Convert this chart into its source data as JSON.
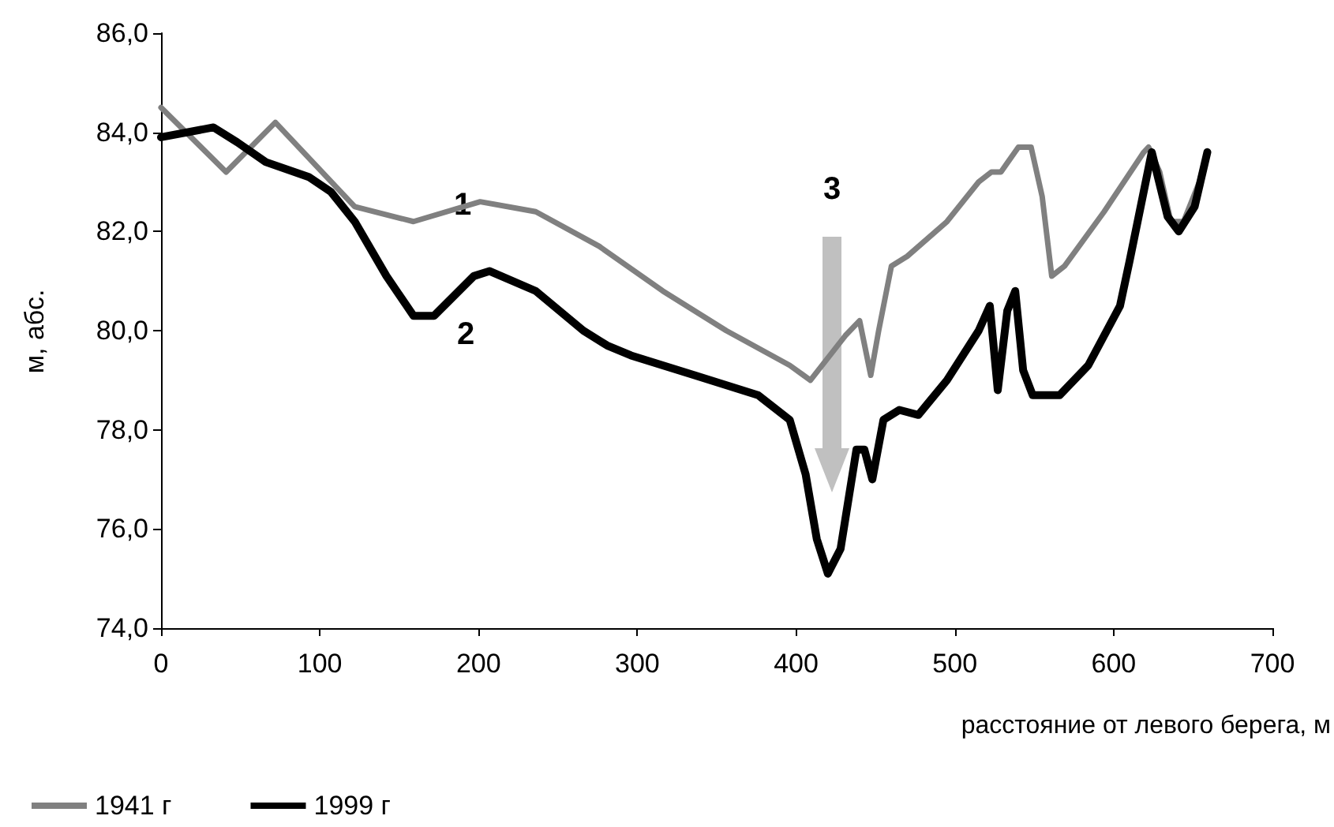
{
  "chart_data": {
    "type": "line",
    "xlabel": "расстояние от левого берега, м",
    "ylabel": "м, абс.",
    "xlim": [
      0,
      700
    ],
    "xticks": [
      0,
      100,
      200,
      300,
      400,
      500,
      600,
      700
    ],
    "ylim": [
      74,
      86
    ],
    "yticks": [
      {
        "value": 74,
        "label": "74,0"
      },
      {
        "value": 76,
        "label": "76,0"
      },
      {
        "value": 78,
        "label": "78,0"
      },
      {
        "value": 80,
        "label": "80,0"
      },
      {
        "value": 82,
        "label": "82,0"
      },
      {
        "value": 84,
        "label": "84,0"
      },
      {
        "value": 86,
        "label": "86,0"
      }
    ],
    "grid": false,
    "legend": "bottom left",
    "marker": "none",
    "line_style": "solid",
    "annotations": [
      "1",
      "2",
      "3"
    ],
    "series": [
      {
        "name": "1941 г",
        "color": "#808080",
        "x": [
          0,
          41,
          72,
          122,
          159,
          201,
          236,
          276,
          316,
          356,
          396,
          409,
          431,
          440,
          447,
          452,
          460,
          470,
          495,
          515,
          523,
          529,
          540,
          548,
          555,
          561,
          569,
          594,
          619,
          622,
          629,
          636,
          644,
          654,
          658
        ],
        "values": [
          84.5,
          83.2,
          84.2,
          82.5,
          82.2,
          82.6,
          82.4,
          81.7,
          80.8,
          80.0,
          79.3,
          79.0,
          79.9,
          80.2,
          79.1,
          80.0,
          81.3,
          81.5,
          82.2,
          83.0,
          83.2,
          83.2,
          83.7,
          83.7,
          82.7,
          81.1,
          81.3,
          82.4,
          83.6,
          83.7,
          83.2,
          82.2,
          82.2,
          83.0,
          83.5
        ]
      },
      {
        "name": "1999 г",
        "color": "#000000",
        "x": [
          0,
          33,
          48,
          66,
          93,
          107,
          122,
          142,
          159,
          172,
          197,
          207,
          236,
          266,
          281,
          296,
          336,
          376,
          396,
          406,
          413,
          420,
          428,
          438,
          443,
          448,
          455,
          465,
          477,
          495,
          515,
          522,
          527,
          533,
          538,
          543,
          549,
          566,
          584,
          604,
          610,
          624,
          634,
          641,
          651,
          659
        ],
        "values": [
          83.9,
          84.1,
          83.8,
          83.4,
          83.1,
          82.8,
          82.2,
          81.1,
          80.3,
          80.3,
          81.1,
          81.2,
          80.8,
          80.0,
          79.7,
          79.5,
          79.1,
          78.7,
          78.2,
          77.1,
          75.8,
          75.1,
          75.6,
          77.6,
          77.6,
          77.0,
          78.2,
          78.4,
          78.3,
          79.0,
          80.0,
          80.5,
          78.8,
          80.4,
          80.8,
          79.2,
          78.7,
          78.7,
          79.3,
          80.5,
          81.4,
          83.6,
          82.3,
          82.0,
          82.5,
          83.6
        ]
      }
    ]
  }
}
